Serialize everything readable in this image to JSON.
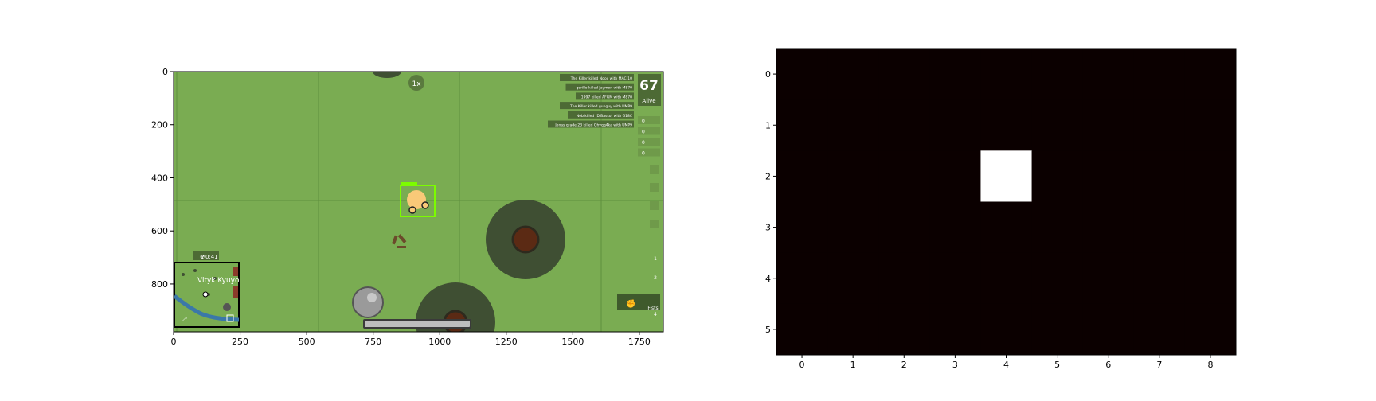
{
  "chart_data": [
    {
      "type": "image",
      "content": "game-screenshot",
      "xlim": [
        0,
        1840
      ],
      "ylim": [
        0,
        980
      ],
      "y_inverted": true,
      "xticks": [
        0,
        250,
        500,
        750,
        1000,
        1250,
        1500,
        1750
      ],
      "yticks": [
        0,
        200,
        400,
        600,
        800
      ],
      "game_hud": {
        "alive_count": "67",
        "alive_label": "Alive",
        "gas_timer": "0:41",
        "minimap_location": "Vityk Kyuyo",
        "zoom_badge": "1x",
        "ammo_counts": [
          "0",
          "0",
          "0",
          "0"
        ],
        "weapon_slots": [
          "1",
          "2",
          "3",
          "4"
        ],
        "active_weapon": "Fists",
        "kill_feed": [
          "The Killer killed Ngoc with MAC-10",
          "gorillo killed Jaymon with M870",
          "1997 killed AFGM with M870",
          "The Killer killed gunguy with UMP9",
          "Neb killed [DiBasso] with G18C",
          "Jonas grade 23 killed Qhyqq4ka with UMP9"
        ]
      }
    },
    {
      "type": "heatmap",
      "rows": 6,
      "cols": 9,
      "xlim": [
        -0.5,
        8.5
      ],
      "ylim": [
        5.5,
        -0.5
      ],
      "xticks": [
        0,
        1,
        2,
        3,
        4,
        5,
        6,
        7,
        8
      ],
      "yticks": [
        0,
        1,
        2,
        3,
        4,
        5
      ],
      "colormap": "hot",
      "grid": false,
      "values": [
        [
          0,
          0,
          0,
          0,
          0,
          0,
          0,
          0,
          0
        ],
        [
          0,
          0,
          0,
          0,
          0,
          0,
          0,
          0,
          0
        ],
        [
          0,
          0,
          0,
          0,
          1,
          0,
          0,
          0,
          0
        ],
        [
          0,
          0,
          0,
          0,
          0,
          0,
          0,
          0,
          0
        ],
        [
          0,
          0,
          0,
          0,
          0,
          0,
          0,
          0,
          0
        ],
        [
          0,
          0,
          0,
          0,
          0,
          0,
          0,
          0,
          0
        ]
      ]
    }
  ]
}
